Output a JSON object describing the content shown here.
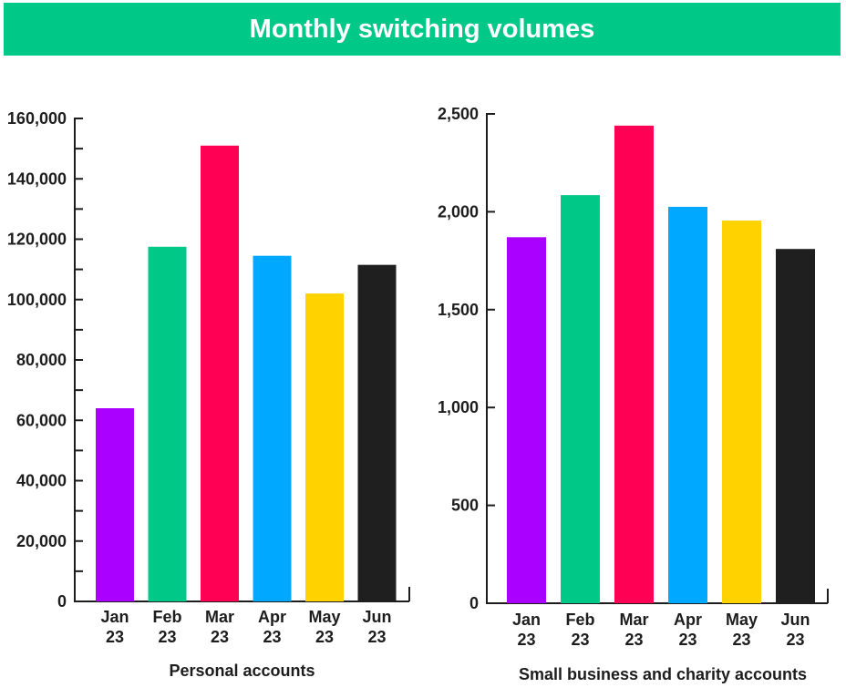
{
  "header": {
    "title": "Monthly switching volumes"
  },
  "chart_data": [
    {
      "type": "bar",
      "title": "",
      "xlabel": "Personal accounts",
      "ylabel": "",
      "categories": [
        "Jan 23",
        "Feb 23",
        "Mar 23",
        "Apr 23",
        "May 23",
        "Jun 23"
      ],
      "values": [
        64000,
        117500,
        151000,
        114500,
        102000,
        111500
      ],
      "ylim": [
        0,
        160000
      ],
      "yticks": [
        "0",
        "20,000",
        "40,000",
        "60,000",
        "80,000",
        "100,000",
        "120,000",
        "140,000",
        "160,000"
      ],
      "colors": [
        "#aa00ff",
        "#00c887",
        "#ff0055",
        "#00a8ff",
        "#ffd200",
        "#1f1f1f"
      ],
      "grid": false
    },
    {
      "type": "bar",
      "title": "",
      "xlabel": "Small business and charity accounts",
      "ylabel": "",
      "categories": [
        "Jan 23",
        "Feb 23",
        "Mar 23",
        "Apr 23",
        "May 23",
        "Jun 23"
      ],
      "values": [
        1870,
        2085,
        2440,
        2025,
        1955,
        1810
      ],
      "ylim": [
        0,
        2500
      ],
      "yticks": [
        "0",
        "500",
        "1,000",
        "1,500",
        "2,000",
        "2,500"
      ],
      "colors": [
        "#aa00ff",
        "#00c887",
        "#ff0055",
        "#00a8ff",
        "#ffd200",
        "#1f1f1f"
      ],
      "grid": false
    }
  ]
}
